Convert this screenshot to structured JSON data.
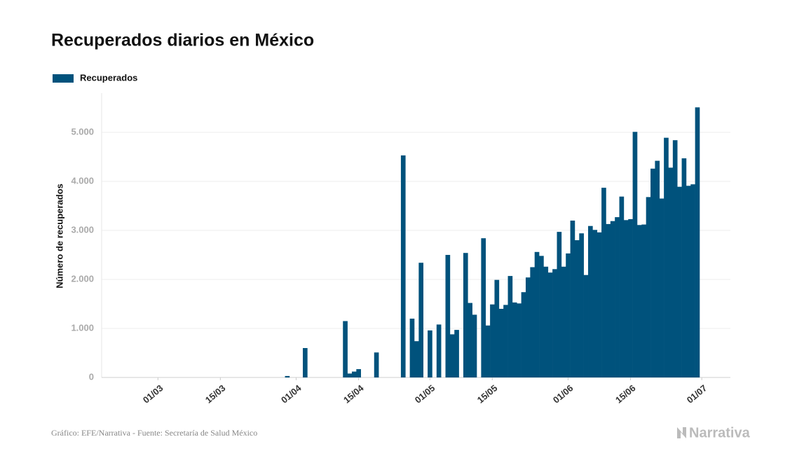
{
  "chart_data": {
    "type": "bar",
    "title": "Recuperados diarios en México",
    "ylabel": "Número de recuperados",
    "source": "Gráfico: EFE/Narrativa - Fuente: Secretaría de Salud México",
    "logo": "Narrativa",
    "legend": "top-left",
    "grid": true,
    "x": [
      "24/02",
      "25/02",
      "26/02",
      "27/02",
      "28/02",
      "29/02",
      "01/03",
      "02/03",
      "03/03",
      "04/03",
      "05/03",
      "06/03",
      "07/03",
      "08/03",
      "09/03",
      "10/03",
      "11/03",
      "12/03",
      "13/03",
      "14/03",
      "15/03",
      "16/03",
      "17/03",
      "18/03",
      "19/03",
      "20/03",
      "21/03",
      "22/03",
      "23/03",
      "24/03",
      "25/03",
      "26/03",
      "27/03",
      "28/03",
      "29/03",
      "30/03",
      "31/03",
      "01/04",
      "02/04",
      "03/04",
      "04/04",
      "05/04",
      "06/04",
      "07/04",
      "08/04",
      "09/04",
      "10/04",
      "11/04",
      "12/04",
      "13/04",
      "14/04",
      "15/04",
      "16/04",
      "17/04",
      "18/04",
      "19/04",
      "20/04",
      "21/04",
      "22/04",
      "23/04",
      "24/04",
      "25/04",
      "26/04",
      "27/04",
      "28/04",
      "29/04",
      "30/04",
      "01/05",
      "02/05",
      "03/05",
      "04/05",
      "05/05",
      "06/05",
      "07/05",
      "08/05",
      "09/05",
      "10/05",
      "11/05",
      "12/05",
      "13/05",
      "14/05",
      "15/05",
      "16/05",
      "17/05",
      "18/05",
      "19/05",
      "20/05",
      "21/05",
      "22/05",
      "23/05",
      "24/05",
      "25/05",
      "26/05",
      "27/05",
      "28/05",
      "29/05",
      "30/05",
      "31/05",
      "01/06",
      "02/06",
      "03/06",
      "04/06",
      "05/06",
      "06/06",
      "07/06",
      "08/06",
      "09/06",
      "10/06",
      "11/06",
      "12/06",
      "13/06",
      "14/06",
      "15/06",
      "16/06",
      "17/06",
      "18/06",
      "19/06",
      "20/06",
      "21/06",
      "22/06",
      "23/06",
      "24/06",
      "25/06",
      "26/06",
      "27/06",
      "28/06",
      "29/06",
      "30/06"
    ],
    "series": [
      {
        "name": "Recuperados",
        "color": "#00527c",
        "values": [
          0,
          0,
          0,
          0,
          0,
          0,
          0,
          0,
          0,
          0,
          0,
          0,
          0,
          0,
          0,
          0,
          0,
          0,
          0,
          0,
          0,
          0,
          0,
          0,
          0,
          0,
          0,
          0,
          0,
          0,
          0,
          0,
          0,
          0,
          0,
          30,
          0,
          0,
          0,
          600,
          0,
          0,
          0,
          0,
          0,
          0,
          0,
          0,
          1150,
          80,
          120,
          170,
          0,
          0,
          0,
          510,
          0,
          0,
          0,
          0,
          0,
          4530,
          0,
          1200,
          740,
          2340,
          0,
          960,
          0,
          1080,
          0,
          2500,
          880,
          970,
          0,
          2540,
          1520,
          1280,
          0,
          2840,
          1060,
          1490,
          1990,
          1400,
          1480,
          2070,
          1530,
          1510,
          1740,
          2040,
          2250,
          2560,
          2480,
          2260,
          2140,
          2210,
          2970,
          2260,
          2530,
          3200,
          2800,
          2940,
          2090,
          3090,
          3010,
          2960,
          3870,
          3130,
          3190,
          3270,
          3690,
          3210,
          3230,
          5010,
          3110,
          3120,
          3680,
          4260,
          4420,
          3650,
          4890,
          4280,
          4840,
          3890,
          4470,
          3910,
          3940,
          5510
        ]
      }
    ],
    "xticks": [
      "01/03",
      "15/03",
      "01/04",
      "15/04",
      "01/05",
      "15/05",
      "01/06",
      "15/06",
      "01/07"
    ],
    "ylim": [
      0,
      5800
    ],
    "yticks": [
      0,
      {
        "value": 1000,
        "label": "1.000"
      },
      {
        "value": 2000,
        "label": "2.000"
      },
      {
        "value": 3000,
        "label": "3.000"
      },
      {
        "value": 4000,
        "label": "4.000"
      },
      {
        "value": 5000,
        "label": "5.000"
      }
    ]
  }
}
